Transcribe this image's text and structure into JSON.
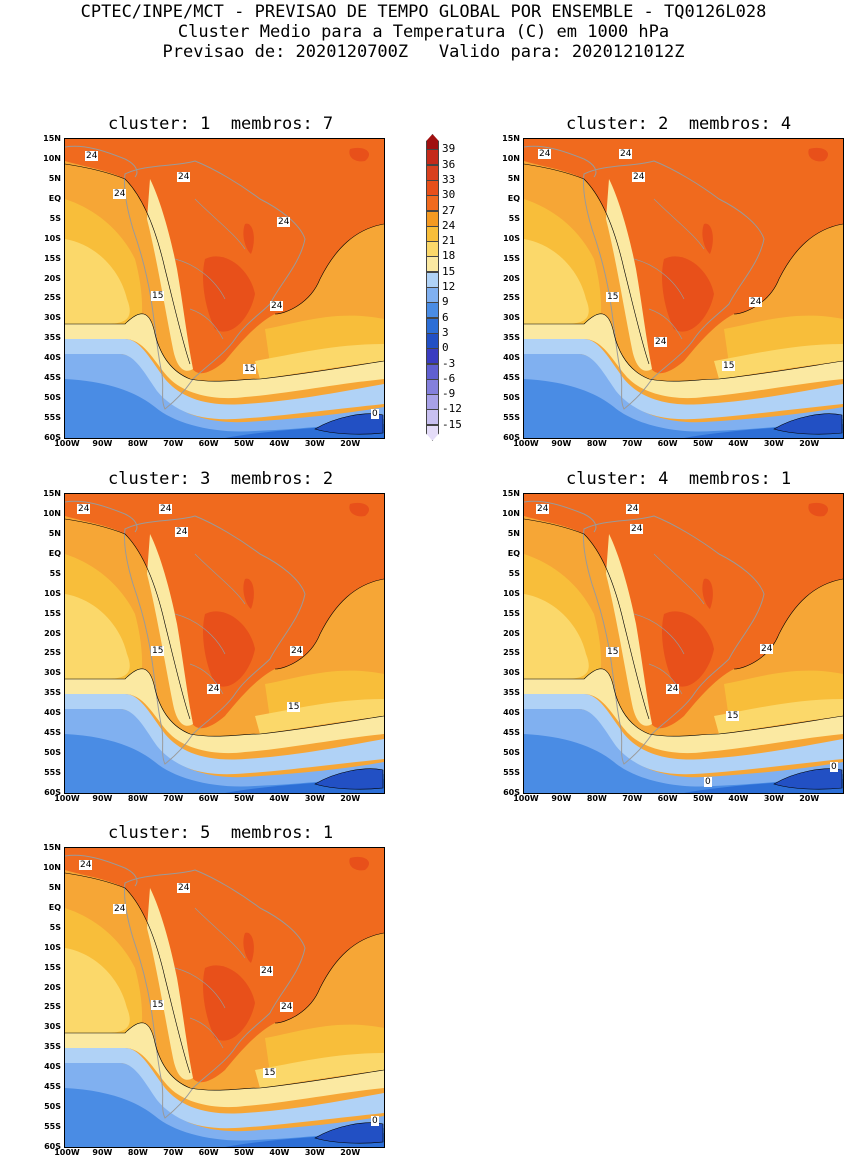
{
  "header": {
    "line1": "CPTEC/INPE/MCT - PREVISAO DE TEMPO GLOBAL POR ENSEMBLE - TQ0126L028",
    "line2": "Cluster Medio para a Temperatura (C) em 1000 hPa",
    "line3": "Previsao de: 2020120700Z   Valido para: 2020121012Z"
  },
  "panels": [
    {
      "title": "cluster: 1  membros: 7",
      "labels": [
        "24",
        "24",
        "24",
        "24",
        "24",
        "15",
        "15",
        "0"
      ]
    },
    {
      "title": "cluster: 2  membros: 4",
      "labels": [
        "24",
        "24",
        "24",
        "24",
        "24",
        "15",
        "15"
      ]
    },
    {
      "title": "cluster: 3  membros: 2",
      "labels": [
        "24",
        "24",
        "24",
        "24",
        "24",
        "15",
        "15"
      ]
    },
    {
      "title": "cluster: 4  membros: 1",
      "labels": [
        "24",
        "24",
        "24",
        "24",
        "24",
        "15",
        "15",
        "0",
        "0"
      ]
    },
    {
      "title": "cluster: 5  membros: 1",
      "labels": [
        "24",
        "24",
        "24",
        "24",
        "24",
        "15",
        "15",
        "0"
      ]
    }
  ],
  "lat_labels": [
    "15N",
    "10N",
    "5N",
    "EQ",
    "5S",
    "10S",
    "15S",
    "20S",
    "25S",
    "30S",
    "35S",
    "40S",
    "45S",
    "50S",
    "55S",
    "60S"
  ],
  "lon_labels": [
    "100W",
    "90W",
    "80W",
    "70W",
    "60W",
    "50W",
    "40W",
    "30W",
    "20W"
  ],
  "colorbar": {
    "labels": [
      "39",
      "36",
      "33",
      "30",
      "27",
      "24",
      "21",
      "18",
      "15",
      "12",
      "9",
      "6",
      "3",
      "0",
      "-3",
      "-6",
      "-9",
      "-12",
      "-15"
    ],
    "colors": [
      "#a01010",
      "#c42a1a",
      "#d8401e",
      "#e8501a",
      "#f06a1e",
      "#f49a22",
      "#f8be3a",
      "#fbd86a",
      "#fbe9a2",
      "#b0d2f6",
      "#80b0f0",
      "#4a8ce4",
      "#2c6ed6",
      "#2250c4",
      "#3a3cc0",
      "#6060d0",
      "#8480dc",
      "#a8a2e8",
      "#c8c0f0",
      "#e4dcf8"
    ]
  }
}
